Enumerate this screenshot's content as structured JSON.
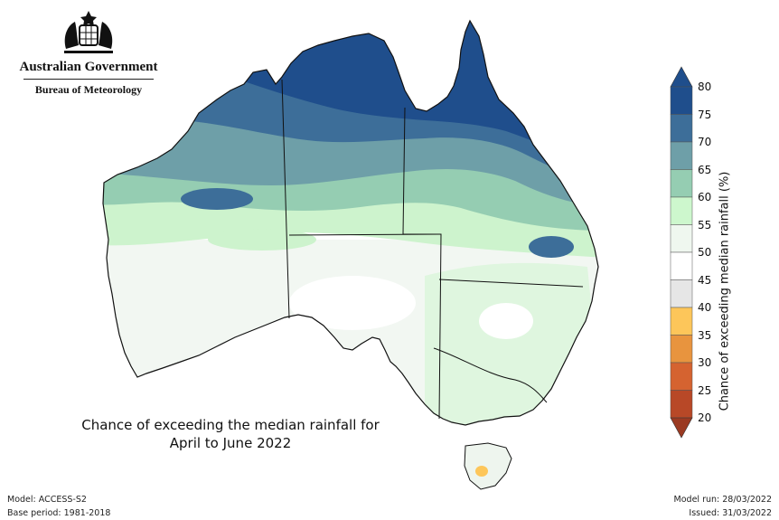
{
  "header": {
    "government": "Australian Government",
    "agency": "Bureau of Meteorology"
  },
  "map": {
    "title_line1": "Chance of exceeding the median rainfall for",
    "title_line2": "April to June 2022"
  },
  "legend": {
    "label": "Chance of exceeding median rainfall (%)",
    "ticks": [
      "80",
      "75",
      "70",
      "65",
      "60",
      "55",
      "50",
      "45",
      "40",
      "35",
      "30",
      "25",
      "20"
    ],
    "colors": [
      "#1f4e8c",
      "#3d6e99",
      "#6e9fa8",
      "#95cdb2",
      "#cdf7cd",
      "#eff7ef",
      "#ffffff",
      "#e6e6e6",
      "#fdc65a",
      "#e8943e",
      "#d56330",
      "#b84827"
    ],
    "over_color": "#1f4e8c",
    "under_color": "#9b3a22"
  },
  "footer": {
    "model": "Model: ACCESS-S2",
    "base_period": "Base period: 1981-2018",
    "model_run": "Model run: 28/03/2022",
    "issued": "Issued: 31/03/2022"
  }
}
